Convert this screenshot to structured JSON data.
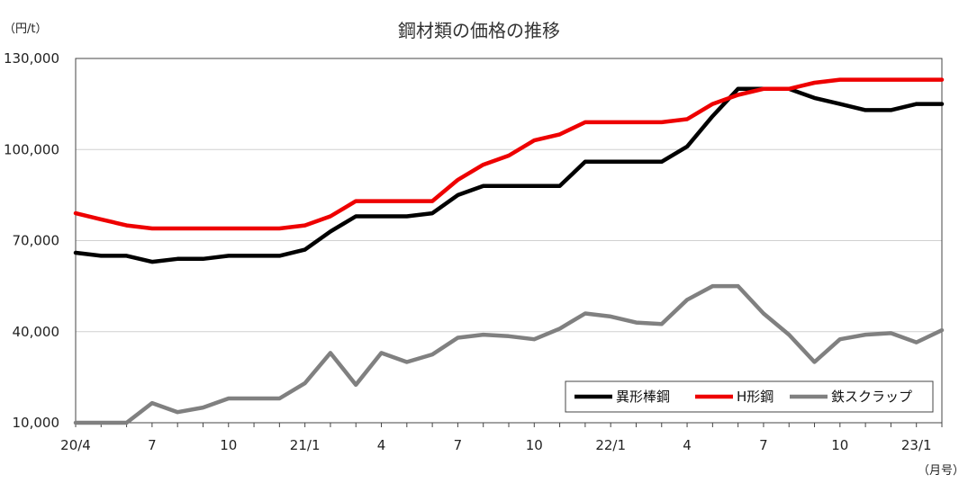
{
  "chart_data": {
    "type": "line",
    "title": "鋼材類の価格の推移",
    "y_unit_label": "（円/t）",
    "x_unit_label": "（月号）",
    "ylim": [
      10000,
      130000
    ],
    "y_ticks": [
      10000,
      40000,
      70000,
      100000,
      130000
    ],
    "y_tick_labels": [
      "10,000",
      "40,000",
      "70,000",
      "100,000",
      "130,000"
    ],
    "x_tick_labels": [
      "20/4",
      "7",
      "10",
      "21/1",
      "4",
      "7",
      "10",
      "22/1",
      "4",
      "7",
      "10",
      "23/1"
    ],
    "x_tick_indices": [
      0,
      3,
      6,
      9,
      12,
      15,
      18,
      21,
      24,
      27,
      30,
      33
    ],
    "n_points": 35,
    "grid": true,
    "legend_position": "bottom-right",
    "series": [
      {
        "name": "異形棒鋼",
        "color": "#000000",
        "values": [
          66000,
          65000,
          65000,
          63000,
          64000,
          64000,
          65000,
          65000,
          65000,
          67000,
          73000,
          78000,
          78000,
          78000,
          79000,
          85000,
          88000,
          88000,
          88000,
          88000,
          96000,
          96000,
          96000,
          96000,
          101000,
          111000,
          120000,
          120000,
          120000,
          117000,
          115000,
          113000,
          113000,
          115000,
          115000
        ]
      },
      {
        "name": "H形鋼",
        "color": "#ee0000",
        "values": [
          79000,
          77000,
          75000,
          74000,
          74000,
          74000,
          74000,
          74000,
          74000,
          75000,
          78000,
          83000,
          83000,
          83000,
          83000,
          90000,
          95000,
          98000,
          103000,
          105000,
          109000,
          109000,
          109000,
          109000,
          110000,
          115000,
          118000,
          120000,
          120000,
          122000,
          123000,
          123000,
          123000,
          123000,
          123000
        ]
      },
      {
        "name": "鉄スクラップ",
        "color": "#808080",
        "values": [
          10000,
          10000,
          10000,
          16500,
          13500,
          15000,
          18000,
          18000,
          18000,
          23000,
          33000,
          22500,
          33000,
          30000,
          32500,
          38000,
          39000,
          38500,
          37500,
          41000,
          46000,
          45000,
          43000,
          42500,
          50500,
          55000,
          55000,
          46000,
          39000,
          30000,
          37500,
          39000,
          39500,
          36500,
          40500
        ]
      }
    ]
  }
}
